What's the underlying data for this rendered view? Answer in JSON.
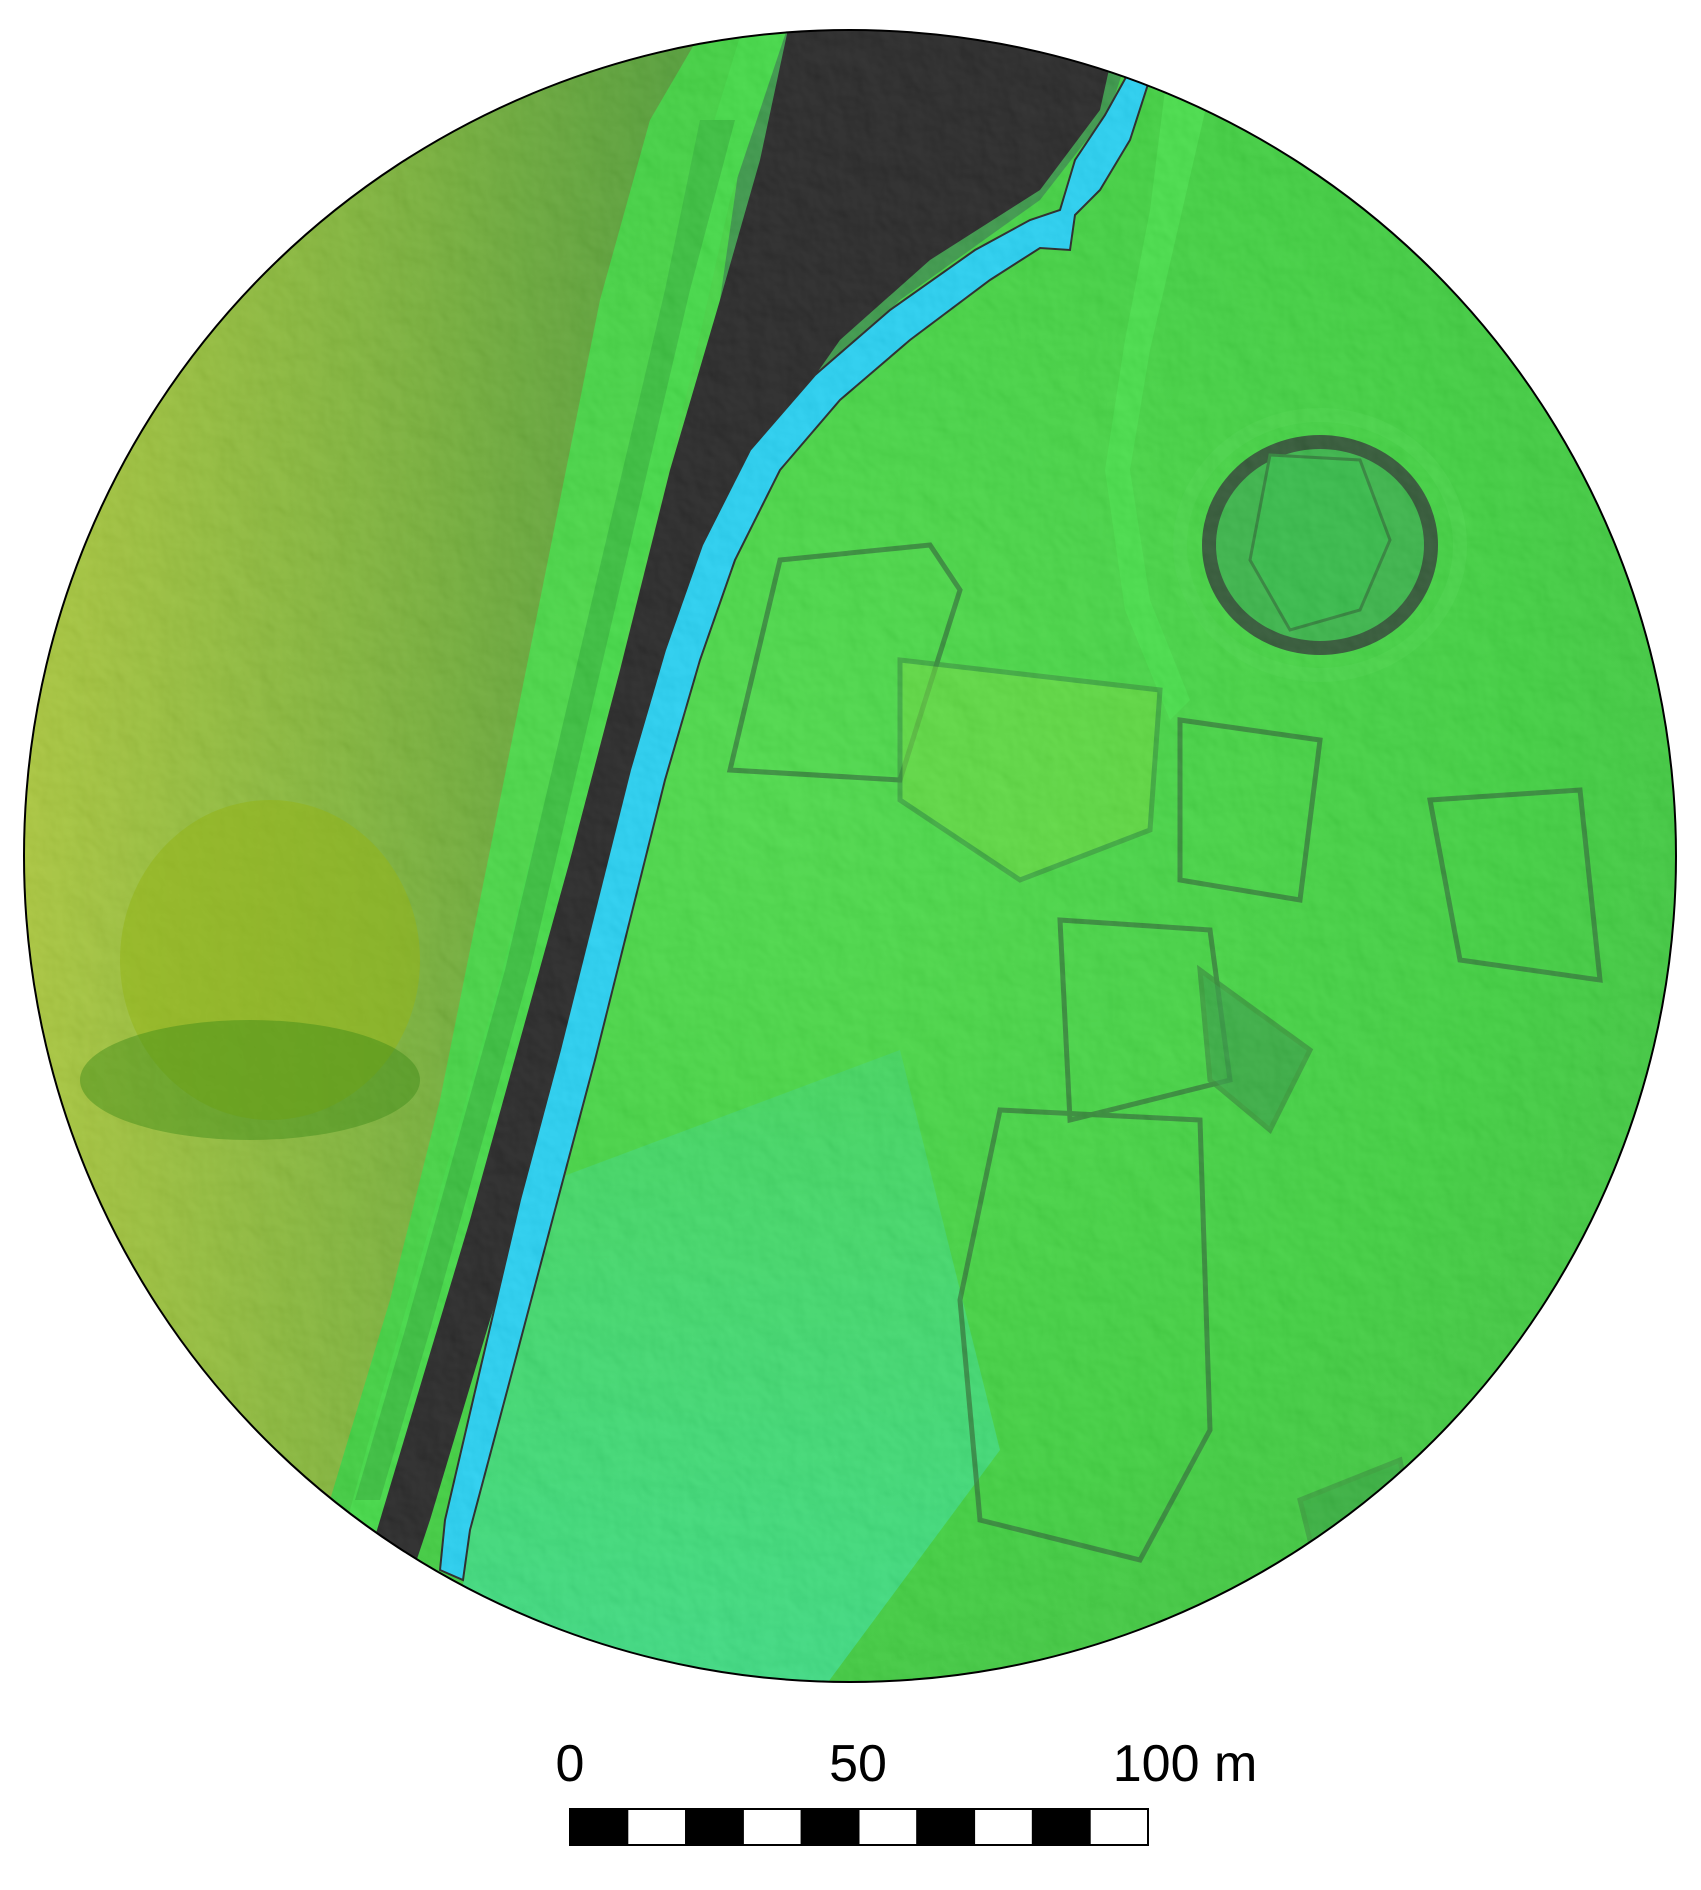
{
  "colors": {
    "terrain_low": "#0a3a0a",
    "terrain_mid": "#1fc21f",
    "terrain_high": "#8fbf1a",
    "channel_dark": "#000000",
    "river": "#00c8f0",
    "outline": "#000000",
    "background": "#ffffff"
  },
  "map": {
    "shape": "circle",
    "style": "shaded-relief elevation (green colour ramp)",
    "features": [
      "river",
      "dark-channel",
      "embankment",
      "circular-reservoir",
      "field-plots",
      "track"
    ]
  },
  "scale_bar": {
    "labels": [
      "0",
      "50",
      "100 m"
    ],
    "segments": 10,
    "colors": [
      "#000000",
      "#ffffff"
    ]
  }
}
